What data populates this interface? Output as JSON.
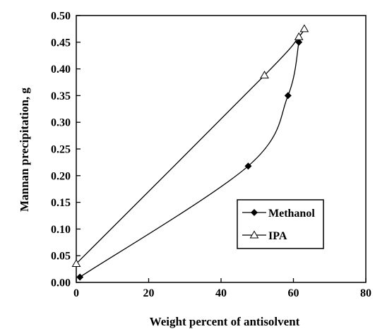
{
  "chart_data": {
    "type": "scatter",
    "xlabel": "Weight percent of antisolvent",
    "ylabel": "Mannan precipitation, g",
    "xlim": [
      0,
      80
    ],
    "ylim": [
      0,
      0.5
    ],
    "x_ticks": [
      "0",
      "20",
      "40",
      "60",
      "80"
    ],
    "y_ticks": [
      "0.00",
      "0.05",
      "0.10",
      "0.15",
      "0.20",
      "0.25",
      "0.30",
      "0.35",
      "0.40",
      "0.45",
      "0.50"
    ],
    "grid": false,
    "legend_position": "lower-right",
    "series": [
      {
        "name": "Methanol",
        "marker": "filled-diamond",
        "color": "#000000",
        "x": [
          1,
          47.5,
          58.5,
          61.5
        ],
        "y": [
          0.01,
          0.218,
          0.35,
          0.45
        ]
      },
      {
        "name": "IPA",
        "marker": "open-triangle",
        "color": "#000000",
        "x": [
          0,
          52,
          61.5,
          63
        ],
        "y": [
          0.035,
          0.388,
          0.46,
          0.475
        ]
      }
    ]
  }
}
